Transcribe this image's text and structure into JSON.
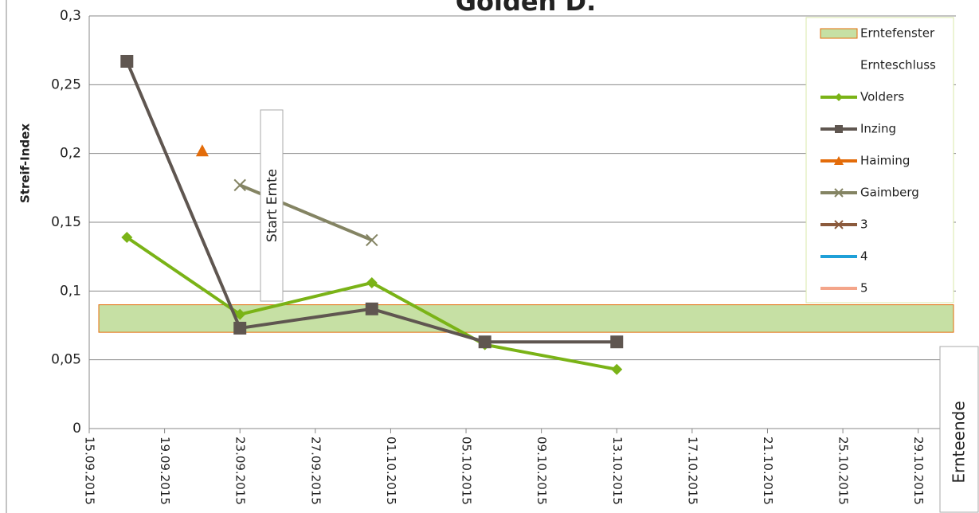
{
  "chart_data": {
    "type": "line",
    "title": "Golden D.",
    "y_label": "Streif-Index",
    "xlim": [
      "2015-09-15",
      "2015-10-31"
    ],
    "xticks": [
      {
        "value": "2015-09-15",
        "label": "15.09.2015"
      },
      {
        "value": "2015-09-19",
        "label": "19.09.2015"
      },
      {
        "value": "2015-09-23",
        "label": "23.09.2015"
      },
      {
        "value": "2015-09-27",
        "label": "27.09.2015"
      },
      {
        "value": "2015-10-01",
        "label": "01.10.2015"
      },
      {
        "value": "2015-10-05",
        "label": "05.10.2015"
      },
      {
        "value": "2015-10-09",
        "label": "09.10.2015"
      },
      {
        "value": "2015-10-13",
        "label": "13.10.2015"
      },
      {
        "value": "2015-10-17",
        "label": "17.10.2015"
      },
      {
        "value": "2015-10-21",
        "label": "21.10.2015"
      },
      {
        "value": "2015-10-25",
        "label": "25.10.2015"
      },
      {
        "value": "2015-10-29",
        "label": "29.10.2015"
      }
    ],
    "ylim": [
      0,
      0.3
    ],
    "yticks": [
      0,
      {
        "value": 0.05,
        "label": "0,05"
      },
      {
        "value": 0.1,
        "label": "0,1"
      },
      {
        "value": 0.15,
        "label": "0,15"
      },
      {
        "value": 0.2,
        "label": "0,2"
      },
      {
        "value": 0.25,
        "label": "0,25"
      },
      {
        "value": 0.3,
        "label": "0,3"
      }
    ],
    "grid": true,
    "band": {
      "name": "Erntefenster",
      "range": [
        0.07,
        0.09
      ],
      "color": "#c6e0a4",
      "edge": "#e46c0a"
    },
    "series": [
      {
        "name": "Ernteschluss",
        "color": "#ffffff",
        "marker": "none",
        "x": [],
        "values": []
      },
      {
        "name": "Volders",
        "color": "#7ab317",
        "marker": "diamond",
        "x": [
          "2015-09-17",
          "2015-09-23",
          "2015-09-30",
          "2015-10-06",
          "2015-10-13"
        ],
        "values": [
          0.139,
          0.083,
          0.106,
          0.061,
          0.043
        ]
      },
      {
        "name": "Inzing",
        "color": "#5f5650",
        "marker": "square",
        "x": [
          "2015-09-17",
          "2015-09-23",
          "2015-09-30",
          "2015-10-06",
          "2015-10-13"
        ],
        "values": [
          0.267,
          0.073,
          0.087,
          0.063,
          0.063
        ]
      },
      {
        "name": "Haiming",
        "color": "#e36c0a",
        "marker": "triangle",
        "x": [
          "2015-09-21"
        ],
        "values": [
          0.202
        ]
      },
      {
        "name": "Gaimberg",
        "color": "#848463",
        "marker": "x",
        "x": [
          "2015-09-23",
          "2015-09-30"
        ],
        "values": [
          0.177,
          0.137
        ]
      },
      {
        "name": "3",
        "color": "#8b5a3c",
        "marker": "star",
        "x": [],
        "values": []
      },
      {
        "name": "4",
        "color": "#1fa0d8",
        "marker": "none",
        "x": [],
        "values": []
      },
      {
        "name": "5",
        "color": "#f4a58a",
        "marker": "none",
        "x": [],
        "values": []
      }
    ],
    "annotations": [
      "Start Ernte",
      "Ernteende"
    ]
  }
}
